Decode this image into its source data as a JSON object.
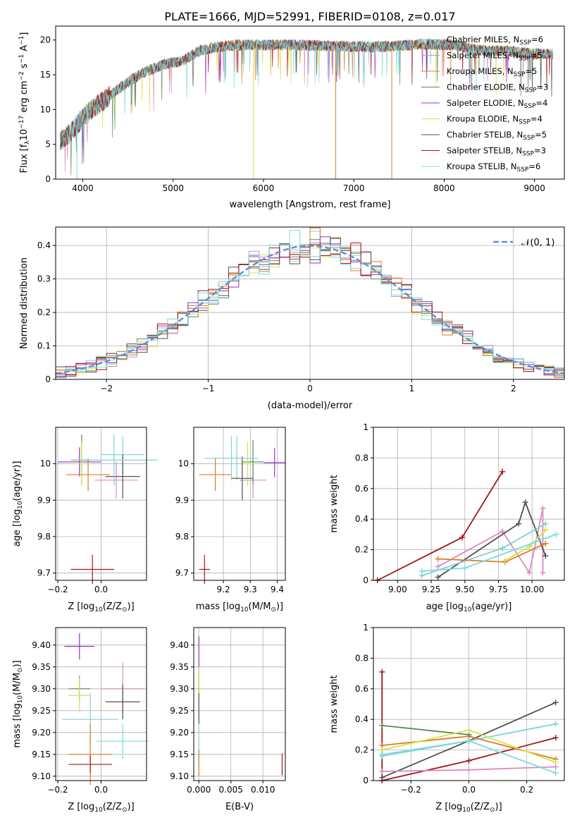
{
  "figure": {
    "title": "PLATE=1666, MJD=52991, FIBERID=0108, z=0.017"
  },
  "models": [
    {
      "name": "Chabrier MILES",
      "nssp": "6",
      "color": "#80d0d8"
    },
    {
      "name": "Salpeter MILES",
      "nssp": "5",
      "color": "#e088c0"
    },
    {
      "name": "Kroupa MILES",
      "nssp": "5",
      "color": "#e07b20"
    },
    {
      "name": "Chabrier ELODIE",
      "nssp": "3",
      "color": "#5a8a5a"
    },
    {
      "name": "Salpeter ELODIE",
      "nssp": "4",
      "color": "#9b30c8"
    },
    {
      "name": "Kroupa ELODIE",
      "nssp": "4",
      "color": "#d8e050"
    },
    {
      "name": "Chabrier STELIB",
      "nssp": "5",
      "color": "#505050"
    },
    {
      "name": "Salpeter STELIB",
      "nssp": "3",
      "color": "#a01818"
    },
    {
      "name": "Kroupa STELIB",
      "nssp": "6",
      "color": "#78dce0"
    }
  ],
  "chart_data": [
    {
      "id": "spectrum",
      "type": "line",
      "title": "PLATE=1666, MJD=52991, FIBERID=0108, z=0.017",
      "xlabel": "wavelength [Angstrom, rest frame]",
      "ylabel_main": "Flux [f",
      "ylabel_sub": "λ",
      "ylabel_rest": "10",
      "ylabel_exp1": "−17",
      "ylabel_rest2": " erg cm",
      "ylabel_exp2": "−2",
      "ylabel_rest3": " s",
      "ylabel_exp3": "−1",
      "ylabel_rest4": " A",
      "ylabel_exp4": "−1",
      "ylabel_end": "]",
      "xlim": [
        3700,
        9330
      ],
      "ylim": [
        0,
        22
      ],
      "xticks": [
        4000,
        5000,
        6000,
        7000,
        8000,
        9000
      ],
      "yticks": [
        0,
        5,
        10,
        15,
        20
      ],
      "legend_position": "top-right",
      "continuum": {
        "x": [
          3750,
          3850,
          3950,
          4050,
          4150,
          4300,
          4500,
          4700,
          4900,
          5100,
          5300,
          5500,
          5700,
          6000,
          6300,
          6600,
          6900,
          7200,
          7500,
          7800,
          8100,
          8400,
          8700,
          9000,
          9200
        ],
        "y": [
          5.5,
          6.5,
          8.0,
          9.5,
          10.5,
          12.0,
          14.0,
          15.5,
          16.5,
          17.0,
          18.5,
          19.0,
          19.3,
          19.3,
          19.3,
          19.2,
          19.1,
          19.0,
          19.2,
          19.4,
          19.3,
          18.5,
          18.4,
          18.0,
          18.0
        ]
      },
      "absorption_dips": [
        {
          "x": 3935,
          "y": 0
        },
        {
          "x": 5890,
          "y": 0
        },
        {
          "x": 6800,
          "y": 0
        },
        {
          "x": 7420,
          "y": 0
        }
      ]
    },
    {
      "id": "residuals",
      "type": "bar",
      "xlabel": "(data-model)/error",
      "ylabel": "Normed distribution",
      "xlim": [
        -2.5,
        2.5
      ],
      "ylim": [
        0,
        0.455
      ],
      "xticks": [
        -2,
        -1,
        0,
        1,
        2
      ],
      "xtick_labels": [
        "−2",
        "−1",
        "0",
        "1",
        "2"
      ],
      "yticks": [
        0.0,
        0.1,
        0.2,
        0.3,
        0.4
      ],
      "bin_width": 0.1,
      "reference": {
        "label": "𝒩(0, 1)",
        "color": "#6090d8",
        "mean": 0,
        "sigma": 1
      },
      "legend_position": "top-right"
    },
    {
      "id": "age-vs-Z",
      "type": "scatter",
      "xlabel": "Z [log",
      "xlabel_sub": "10",
      "xlabel_rest": "(Z/Z",
      "xlabel_sub2": "⊙",
      "xlabel_end": ")]",
      "ylabel": "age  [log",
      "ylabel_sub": "10",
      "ylabel_rest": "(age/yr)]",
      "xlim": [
        -0.21,
        0.21
      ],
      "ylim": [
        9.68,
        10.1
      ],
      "xticks": [
        -0.2,
        0.0
      ],
      "xtick_labels": [
        "−0.2",
        "0.0"
      ],
      "yticks": [
        9.7,
        9.8,
        9.9,
        10.0
      ],
      "points": [
        {
          "model": 0,
          "x": 0.1,
          "y": 10.025,
          "xerr": 0.1,
          "yerr": 0.05
        },
        {
          "model": 1,
          "x": 0.07,
          "y": 9.955,
          "xerr": 0.1,
          "yerr": 0.05
        },
        {
          "model": 2,
          "x": -0.06,
          "y": 9.97,
          "xerr": 0.1,
          "yerr": 0.045
        },
        {
          "model": 3,
          "x": -0.09,
          "y": 10.01,
          "xerr": 0.05,
          "yerr": 0.07
        },
        {
          "model": 4,
          "x": -0.1,
          "y": 10.005,
          "xerr": 0.1,
          "yerr": 0.04
        },
        {
          "model": 5,
          "x": -0.09,
          "y": 10.0,
          "xerr": 0.05,
          "yerr": 0.06
        },
        {
          "model": 6,
          "x": 0.1,
          "y": 9.965,
          "xerr": 0.08,
          "yerr": 0.06
        },
        {
          "model": 7,
          "x": -0.04,
          "y": 9.71,
          "xerr": 0.1,
          "yerr": 0.04
        },
        {
          "model": 0,
          "x": 0.06,
          "y": 10.01,
          "xerr": 0.2,
          "yerr": 0.07
        }
      ]
    },
    {
      "id": "age-vs-mass",
      "type": "scatter",
      "xlabel": "mass [log",
      "xlabel_sub": "10",
      "xlabel_rest": "(M/M",
      "xlabel_sub2": "⊙",
      "xlabel_end": ")]",
      "xlim": [
        9.09,
        9.43
      ],
      "ylim": [
        9.68,
        10.1
      ],
      "xticks": [
        9.2,
        9.3,
        9.4
      ],
      "yticks": [
        9.7,
        9.8,
        9.9,
        10.0
      ],
      "points": [
        {
          "model": 0,
          "x": 9.25,
          "y": 10.015,
          "xerr": 0.06,
          "yerr": 0.06
        },
        {
          "model": 1,
          "x": 9.31,
          "y": 9.955,
          "xerr": 0.05,
          "yerr": 0.05
        },
        {
          "model": 2,
          "x": 9.17,
          "y": 9.97,
          "xerr": 0.06,
          "yerr": 0.045
        },
        {
          "model": 3,
          "x": 9.31,
          "y": 10.005,
          "xerr": 0.04,
          "yerr": 0.06
        },
        {
          "model": 4,
          "x": 9.39,
          "y": 10.003,
          "xerr": 0.04,
          "yerr": 0.04
        },
        {
          "model": 5,
          "x": 9.29,
          "y": 10.0,
          "xerr": 0.03,
          "yerr": 0.06
        },
        {
          "model": 6,
          "x": 9.27,
          "y": 9.96,
          "xerr": 0.04,
          "yerr": 0.06
        },
        {
          "model": 7,
          "x": 9.13,
          "y": 9.71,
          "xerr": 0.02,
          "yerr": 0.04
        },
        {
          "model": 0,
          "x": 9.23,
          "y": 10.015,
          "xerr": 0.1,
          "yerr": 0.06
        }
      ]
    },
    {
      "id": "massweight-vs-age",
      "type": "line",
      "xlabel": "age  [log",
      "xlabel_sub": "10",
      "xlabel_rest": "(age/yr)]",
      "ylabel": "mass weight",
      "xlim": [
        8.82,
        10.24
      ],
      "ylim": [
        0,
        1
      ],
      "xticks": [
        9.0,
        9.25,
        9.5,
        9.75,
        10.0
      ],
      "xtick_labels": [
        "9.00",
        "9.25",
        "9.50",
        "9.75",
        "10.00"
      ],
      "yticks": [
        0.0,
        0.2,
        0.4,
        0.6,
        0.8,
        1.0
      ],
      "series": [
        {
          "model": 7,
          "x": [
            8.85,
            9.48,
            9.78
          ],
          "y": [
            0.0,
            0.28,
            0.71
          ]
        },
        {
          "model": 1,
          "x": [
            9.3,
            9.78,
            9.98,
            10.08,
            10.08
          ],
          "y": [
            0.09,
            0.32,
            0.05,
            0.47,
            0.05
          ]
        },
        {
          "model": 6,
          "x": [
            9.3,
            9.9,
            9.95,
            10.1
          ],
          "y": [
            0.02,
            0.37,
            0.51,
            0.16
          ]
        },
        {
          "model": 0,
          "x": [
            9.18,
            9.78,
            10.1
          ],
          "y": [
            0.03,
            0.21,
            0.37
          ]
        },
        {
          "model": 2,
          "x": [
            9.3,
            9.8,
            10.1
          ],
          "y": [
            0.14,
            0.12,
            0.24
          ]
        },
        {
          "model": 5,
          "x": [
            9.8,
            9.98,
            10.1
          ],
          "y": [
            0.13,
            0.22,
            0.33
          ]
        },
        {
          "model": 8,
          "x": [
            9.18,
            9.5,
            10.18
          ],
          "y": [
            0.06,
            0.08,
            0.3
          ]
        }
      ]
    },
    {
      "id": "mass-vs-Z",
      "type": "scatter",
      "xlabel": "Z [log",
      "xlabel_sub": "10",
      "xlabel_rest": "(Z/Z",
      "xlabel_sub2": "⊙",
      "xlabel_end": ")]",
      "ylabel": "mass [log",
      "ylabel_sub": "10",
      "ylabel_rest": "(M/M",
      "ylabel_sub2": "⊙",
      "ylabel_end": ")]",
      "xlim": [
        -0.21,
        0.21
      ],
      "ylim": [
        9.09,
        9.44
      ],
      "xticks": [
        -0.2,
        0.0
      ],
      "xtick_labels": [
        "−0.2",
        "0.0"
      ],
      "yticks": [
        9.1,
        9.15,
        9.2,
        9.25,
        9.3,
        9.35,
        9.4
      ],
      "yticklabels": [
        "9.10",
        "9.15",
        "9.20",
        "9.25",
        "9.30",
        "9.35",
        "9.40"
      ],
      "points": [
        {
          "model": 4,
          "x": -0.1,
          "y": 9.397,
          "xerr": 0.07,
          "yerr": 0.03
        },
        {
          "model": 1,
          "x": 0.1,
          "y": 9.3,
          "xerr": 0.1,
          "yerr": 0.06
        },
        {
          "model": 3,
          "x": -0.1,
          "y": 9.3,
          "xerr": 0.05,
          "yerr": 0.03
        },
        {
          "model": 5,
          "x": -0.1,
          "y": 9.285,
          "xerr": 0.05,
          "yerr": 0.04
        },
        {
          "model": 6,
          "x": 0.1,
          "y": 9.27,
          "xerr": 0.08,
          "yerr": 0.04
        },
        {
          "model": 0,
          "x": -0.05,
          "y": 9.23,
          "xerr": 0.13,
          "yerr": 0.06
        },
        {
          "model": 8,
          "x": 0.1,
          "y": 9.18,
          "xerr": 0.12,
          "yerr": 0.04
        },
        {
          "model": 2,
          "x": -0.05,
          "y": 9.15,
          "xerr": 0.1,
          "yerr": 0.07
        },
        {
          "model": 7,
          "x": -0.05,
          "y": 9.127,
          "xerr": 0.1,
          "yerr": 0.02
        }
      ]
    },
    {
      "id": "mass-vs-ebv",
      "type": "scatter",
      "xlabel": "E(B-V)",
      "xlim": [
        -0.0008,
        0.0135
      ],
      "ylim": [
        9.09,
        9.44
      ],
      "xticks": [
        0.0,
        0.005,
        0.01
      ],
      "xtick_labels": [
        "0.000",
        "0.005",
        "0.010"
      ],
      "yticks": [
        9.1,
        9.15,
        9.2,
        9.25,
        9.3,
        9.35,
        9.4
      ],
      "yticklabels": [
        "9.10",
        "9.15",
        "9.20",
        "9.25",
        "9.30",
        "9.35",
        "9.40"
      ],
      "points": [
        {
          "model": 4,
          "x": 0.0,
          "y": 9.38,
          "xerr": 0,
          "yerr": 0.04
        },
        {
          "model": 6,
          "x": 0.0,
          "y": 9.28,
          "xerr": 0,
          "yerr": 0.06
        },
        {
          "model": 5,
          "x": 0.0,
          "y": 9.32,
          "xerr": 0,
          "yerr": 0.03
        },
        {
          "model": 8,
          "x": 0.0,
          "y": 9.17,
          "xerr": 0,
          "yerr": 0.05
        },
        {
          "model": 2,
          "x": 0.0,
          "y": 9.13,
          "xerr": 0,
          "yerr": 0.03
        },
        {
          "model": 7,
          "x": 0.013,
          "y": 9.127,
          "xerr": 0,
          "yerr": 0.025
        }
      ]
    },
    {
      "id": "massweight-vs-Z",
      "type": "line",
      "xlabel": "Z [log",
      "xlabel_sub": "10",
      "xlabel_rest": "(Z/Z",
      "xlabel_sub2": "⊙",
      "xlabel_end": ")]",
      "ylabel": "mass weight",
      "xlim": [
        -0.33,
        0.33
      ],
      "ylim": [
        0,
        1
      ],
      "xticks": [
        -0.2,
        0.0,
        0.2
      ],
      "xtick_labels": [
        "−0.2",
        "0.0",
        "0.2"
      ],
      "yticks": [
        0.0,
        0.2,
        0.4,
        0.6,
        0.8,
        1.0
      ],
      "series": [
        {
          "model": 7,
          "x": [
            -0.3,
            -0.3,
            0.0,
            0.3
          ],
          "y": [
            0.71,
            0.0,
            0.13,
            0.28
          ]
        },
        {
          "model": 6,
          "x": [
            -0.3,
            0.0,
            0.3
          ],
          "y": [
            0.02,
            0.26,
            0.51
          ]
        },
        {
          "model": 0,
          "x": [
            -0.3,
            0.0,
            0.3
          ],
          "y": [
            0.16,
            0.26,
            0.37
          ]
        },
        {
          "model": 2,
          "x": [
            -0.3,
            0.0,
            0.3
          ],
          "y": [
            0.23,
            0.29,
            0.14
          ]
        },
        {
          "model": 3,
          "x": [
            -0.3,
            0.0
          ],
          "y": [
            0.36,
            0.3
          ]
        },
        {
          "model": 5,
          "x": [
            -0.3,
            0.0,
            0.3
          ],
          "y": [
            0.2,
            0.33,
            0.12
          ]
        },
        {
          "model": 1,
          "x": [
            -0.3,
            0.0,
            0.3
          ],
          "y": [
            0.06,
            0.07,
            0.09
          ]
        },
        {
          "model": 8,
          "x": [
            -0.3,
            0.0,
            0.3
          ],
          "y": [
            0.17,
            0.26,
            0.05
          ]
        }
      ]
    }
  ]
}
